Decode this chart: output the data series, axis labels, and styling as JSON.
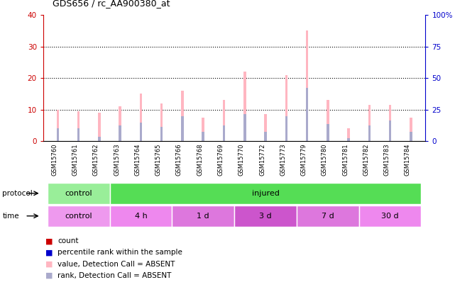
{
  "title": "GDS656 / rc_AA900380_at",
  "samples": [
    "GSM15760",
    "GSM15761",
    "GSM15762",
    "GSM15763",
    "GSM15764",
    "GSM15765",
    "GSM15766",
    "GSM15768",
    "GSM15769",
    "GSM15770",
    "GSM15772",
    "GSM15773",
    "GSM15779",
    "GSM15780",
    "GSM15781",
    "GSM15782",
    "GSM15783",
    "GSM15784"
  ],
  "value_bars": [
    10.0,
    9.5,
    9.0,
    11.0,
    15.0,
    12.0,
    16.0,
    7.5,
    13.0,
    22.0,
    8.5,
    21.0,
    35.0,
    13.0,
    4.0,
    11.5,
    11.5,
    7.5
  ],
  "rank_bars": [
    4.0,
    4.0,
    1.5,
    5.0,
    6.0,
    4.5,
    8.0,
    3.0,
    5.0,
    8.5,
    3.0,
    8.0,
    17.0,
    5.5,
    1.0,
    5.0,
    6.5,
    3.0
  ],
  "ylim_left": [
    0,
    40
  ],
  "ylim_right": [
    0,
    100
  ],
  "yticks_left": [
    0,
    10,
    20,
    30,
    40
  ],
  "yticks_right": [
    0,
    25,
    50,
    75,
    100
  ],
  "ytick_labels_right": [
    "0",
    "25",
    "50",
    "75",
    "100%"
  ],
  "color_value_absent": "#FFB6C1",
  "color_rank_absent": "#AAAACC",
  "protocol_control_color": "#99EE99",
  "protocol_injured_color": "#55DD55",
  "time_control_color": "#EE99EE",
  "time_4h_color": "#EE88EE",
  "time_1d_color": "#DD77DD",
  "time_3d_color": "#CC55CC",
  "time_7d_color": "#DD77DD",
  "time_30d_color": "#EE88EE",
  "protocol_regions": [
    {
      "label": "control",
      "start": 0,
      "end": 3
    },
    {
      "label": "injured",
      "start": 3,
      "end": 18
    }
  ],
  "time_regions": [
    {
      "label": "control",
      "start": 0,
      "end": 3
    },
    {
      "label": "4 h",
      "start": 3,
      "end": 6
    },
    {
      "label": "1 d",
      "start": 6,
      "end": 9
    },
    {
      "label": "3 d",
      "start": 9,
      "end": 12
    },
    {
      "label": "7 d",
      "start": 12,
      "end": 15
    },
    {
      "label": "30 d",
      "start": 15,
      "end": 18
    }
  ],
  "left_axis_color": "#CC0000",
  "right_axis_color": "#0000CC",
  "bar_width": 0.12,
  "tick_area_color": "#DDDDDD",
  "legend_colors": [
    "#CC0000",
    "#0000CC",
    "#FFB6C1",
    "#AAAACC"
  ],
  "legend_labels": [
    "count",
    "percentile rank within the sample",
    "value, Detection Call = ABSENT",
    "rank, Detection Call = ABSENT"
  ]
}
